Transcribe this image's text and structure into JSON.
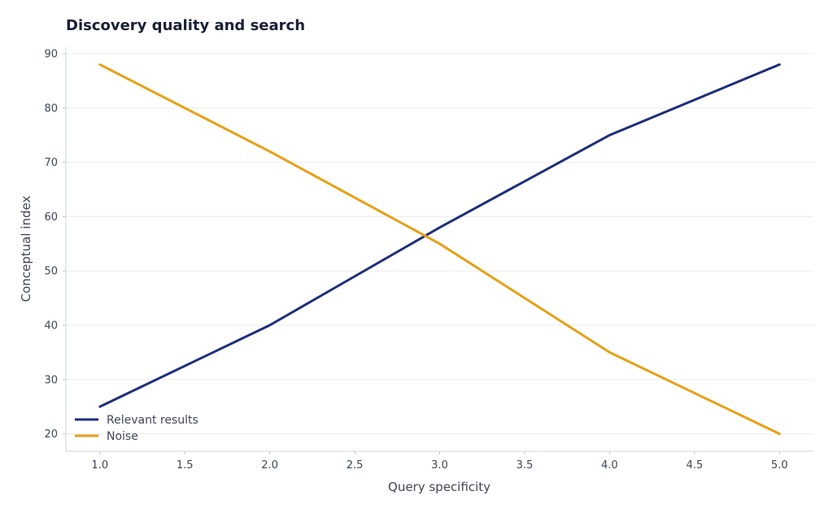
{
  "chart_data": {
    "type": "line",
    "title": "Discovery quality and search",
    "xlabel": "Query specificity",
    "ylabel": "Conceptual index",
    "x": [
      1.0,
      2.0,
      3.0,
      4.0,
      5.0
    ],
    "xlim": [
      0.8,
      5.2
    ],
    "ylim": [
      16.8,
      91.2
    ],
    "xticks": [
      "1.0",
      "1.5",
      "2.0",
      "2.5",
      "3.0",
      "3.5",
      "4.0",
      "4.5",
      "5.0"
    ],
    "yticks": [
      "20",
      "30",
      "40",
      "50",
      "60",
      "70",
      "80",
      "90"
    ],
    "grid": true,
    "legend_position": "bottom-left",
    "series": [
      {
        "name": "Relevant results",
        "color": "#1f2d7a",
        "values": [
          25,
          40,
          58,
          75,
          88
        ]
      },
      {
        "name": "Noise",
        "color": "#e6a017",
        "values": [
          88,
          72,
          55,
          35,
          20
        ]
      }
    ]
  }
}
